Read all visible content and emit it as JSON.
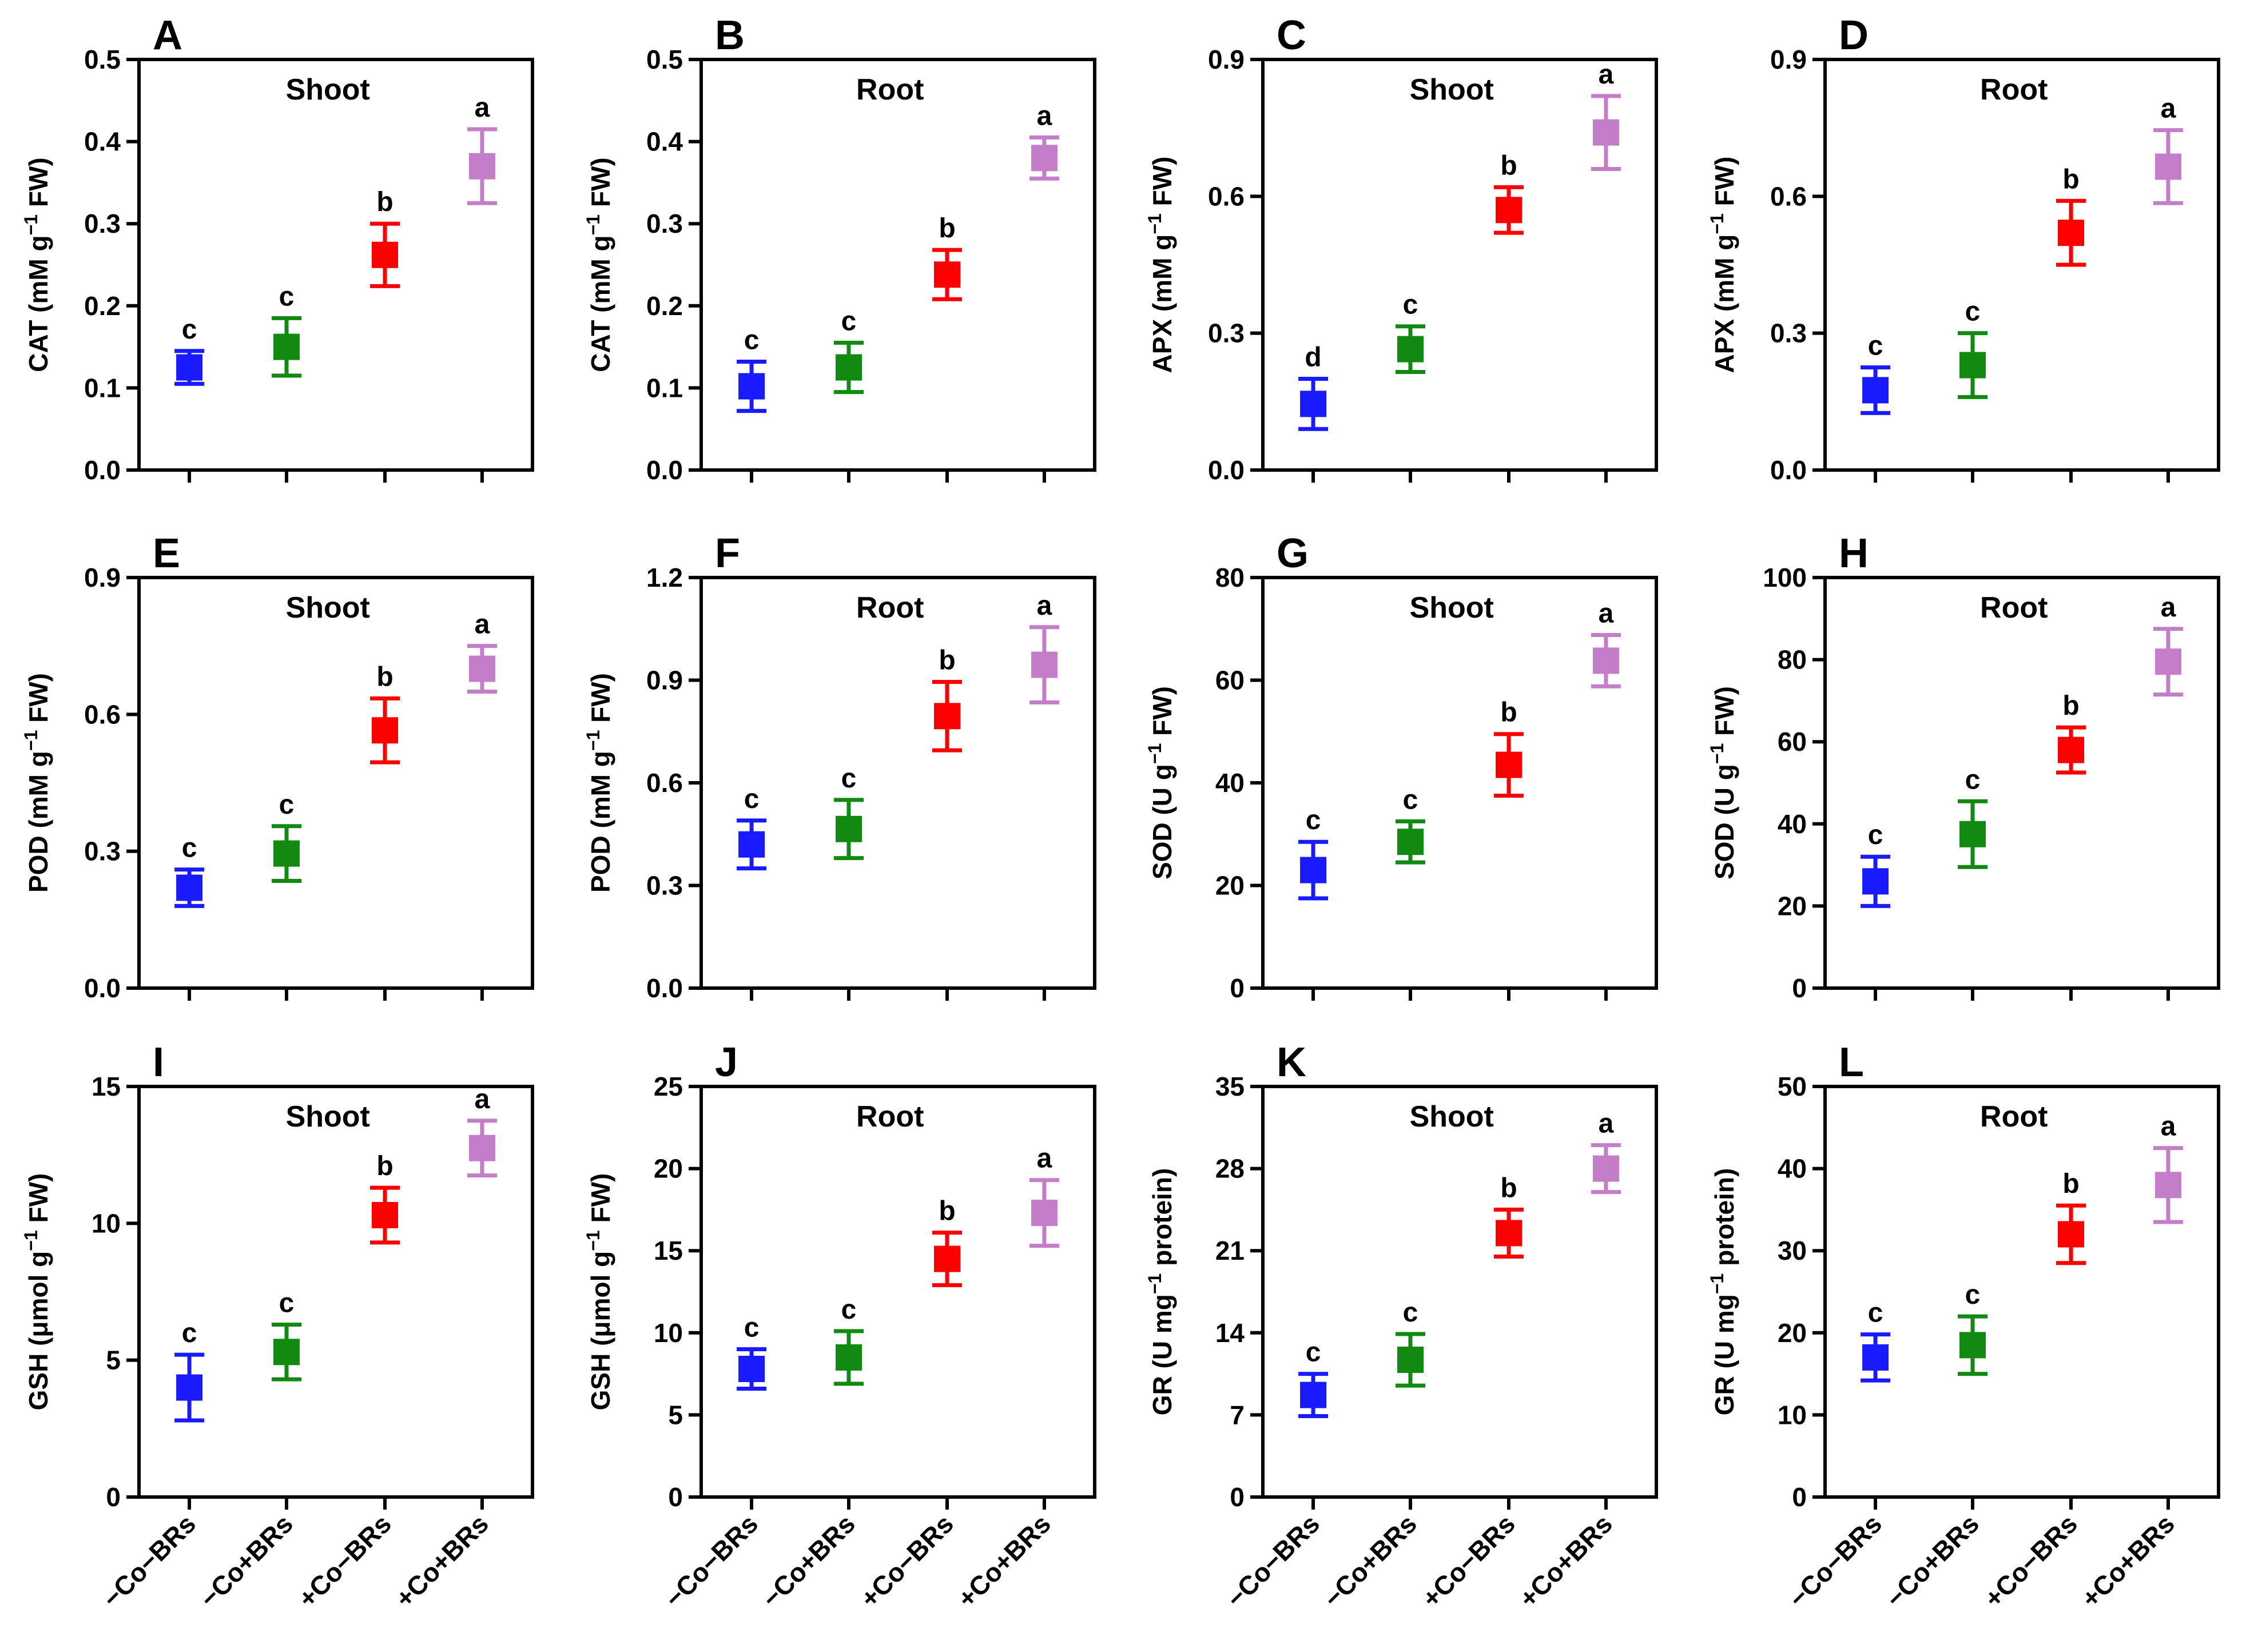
{
  "figure": {
    "categories": [
      "−Co−BRs",
      "−Co+BRs",
      "+Co−BRs",
      "+Co+BRs"
    ],
    "series_colors": [
      "#1a1aff",
      "#128a12",
      "#ff0000",
      "#c47ec9"
    ]
  },
  "chart_data": [
    {
      "type": "scatter",
      "panel": "A",
      "title": "Shoot",
      "ylabel_main": "CAT (mM g",
      "ylabel_sup": "−1",
      "ylabel_tail": " FW)",
      "ylim": [
        0,
        0.5
      ],
      "yticks": [
        0.0,
        0.1,
        0.2,
        0.3,
        0.4,
        0.5
      ],
      "tick_labels": [
        "0.0",
        "0.1",
        "0.2",
        "0.3",
        "0.4",
        "0.5"
      ],
      "values": [
        0.125,
        0.15,
        0.262,
        0.37
      ],
      "errors": [
        0.02,
        0.035,
        0.038,
        0.045
      ],
      "letters": [
        "c",
        "c",
        "b",
        "a"
      ],
      "show_xlabels": false
    },
    {
      "type": "scatter",
      "panel": "B",
      "title": "Root",
      "ylabel_main": "CAT (mM g",
      "ylabel_sup": "−1",
      "ylabel_tail": " FW)",
      "ylim": [
        0,
        0.5
      ],
      "yticks": [
        0.0,
        0.1,
        0.2,
        0.3,
        0.4,
        0.5
      ],
      "tick_labels": [
        "0.0",
        "0.1",
        "0.2",
        "0.3",
        "0.4",
        "0.5"
      ],
      "values": [
        0.102,
        0.125,
        0.238,
        0.38
      ],
      "errors": [
        0.03,
        0.03,
        0.03,
        0.025
      ],
      "letters": [
        "c",
        "c",
        "b",
        "a"
      ],
      "show_xlabels": false
    },
    {
      "type": "scatter",
      "panel": "C",
      "title": "Shoot",
      "ylabel_main": "APX (mM g",
      "ylabel_sup": "−1",
      "ylabel_tail": " FW)",
      "ylim": [
        0,
        0.9
      ],
      "yticks": [
        0.0,
        0.3,
        0.6,
        0.9
      ],
      "tick_labels": [
        "0.0",
        "0.3",
        "0.6",
        "0.9"
      ],
      "values": [
        0.145,
        0.265,
        0.57,
        0.74
      ],
      "errors": [
        0.055,
        0.05,
        0.05,
        0.08
      ],
      "letters": [
        "d",
        "c",
        "b",
        "a"
      ],
      "show_xlabels": false
    },
    {
      "type": "scatter",
      "panel": "D",
      "title": "Root",
      "ylabel_main": "APX (mM g",
      "ylabel_sup": "−1",
      "ylabel_tail": " FW)",
      "ylim": [
        0,
        0.9
      ],
      "yticks": [
        0.0,
        0.3,
        0.6,
        0.9
      ],
      "tick_labels": [
        "0.0",
        "0.3",
        "0.6",
        "0.9"
      ],
      "values": [
        0.175,
        0.23,
        0.52,
        0.665
      ],
      "errors": [
        0.05,
        0.07,
        0.07,
        0.08
      ],
      "letters": [
        "c",
        "c",
        "b",
        "a"
      ],
      "show_xlabels": false
    },
    {
      "type": "scatter",
      "panel": "E",
      "title": "Shoot",
      "ylabel_main": "POD (mM g",
      "ylabel_sup": "−1",
      "ylabel_tail": " FW)",
      "ylim": [
        0,
        0.9
      ],
      "yticks": [
        0.0,
        0.3,
        0.6,
        0.9
      ],
      "tick_labels": [
        "0.0",
        "0.3",
        "0.6",
        "0.9"
      ],
      "values": [
        0.22,
        0.295,
        0.565,
        0.7
      ],
      "errors": [
        0.04,
        0.06,
        0.07,
        0.05
      ],
      "letters": [
        "c",
        "c",
        "b",
        "a"
      ],
      "show_xlabels": false
    },
    {
      "type": "scatter",
      "panel": "F",
      "title": "Root",
      "ylabel_main": "POD (mM g",
      "ylabel_sup": "−1",
      "ylabel_tail": " FW)",
      "ylim": [
        0,
        1.2
      ],
      "yticks": [
        0.0,
        0.3,
        0.6,
        0.9,
        1.2
      ],
      "tick_labels": [
        "0.0",
        "0.3",
        "0.6",
        "0.9",
        "1.2"
      ],
      "values": [
        0.42,
        0.465,
        0.795,
        0.945
      ],
      "errors": [
        0.07,
        0.085,
        0.1,
        0.11
      ],
      "letters": [
        "c",
        "c",
        "b",
        "a"
      ],
      "show_xlabels": false
    },
    {
      "type": "scatter",
      "panel": "G",
      "title": "Shoot",
      "ylabel_main": "SOD (U g",
      "ylabel_sup": "−1",
      "ylabel_tail": " FW)",
      "ylim": [
        0,
        80
      ],
      "yticks": [
        0,
        20,
        40,
        60,
        80
      ],
      "tick_labels": [
        "0",
        "20",
        "40",
        "60",
        "80"
      ],
      "values": [
        23,
        28.5,
        43.5,
        63.8
      ],
      "errors": [
        5.5,
        4,
        6,
        5
      ],
      "letters": [
        "c",
        "c",
        "b",
        "a"
      ],
      "show_xlabels": false
    },
    {
      "type": "scatter",
      "panel": "H",
      "title": "Root",
      "ylabel_main": "SOD (U g",
      "ylabel_sup": "−1",
      "ylabel_tail": " FW)",
      "ylim": [
        0,
        100
      ],
      "yticks": [
        0,
        20,
        40,
        60,
        80,
        100
      ],
      "tick_labels": [
        "0",
        "20",
        "40",
        "60",
        "80",
        "100"
      ],
      "values": [
        26,
        37.5,
        58,
        79.5
      ],
      "errors": [
        6,
        8,
        5.5,
        8
      ],
      "letters": [
        "c",
        "c",
        "b",
        "a"
      ],
      "show_xlabels": false
    },
    {
      "type": "scatter",
      "panel": "I",
      "title": "Shoot",
      "ylabel_main": "GSH (μmol g",
      "ylabel_sup": "−1",
      "ylabel_tail": " FW)",
      "ylim": [
        0,
        15
      ],
      "yticks": [
        0,
        5,
        10,
        15
      ],
      "tick_labels": [
        "0",
        "5",
        "10",
        "15"
      ],
      "values": [
        4,
        5.3,
        10.3,
        12.75
      ],
      "errors": [
        1.2,
        1.0,
        1.0,
        1.0
      ],
      "letters": [
        "c",
        "c",
        "b",
        "a"
      ],
      "show_xlabels": true
    },
    {
      "type": "scatter",
      "panel": "J",
      "title": "Root",
      "ylabel_main": "GSH (μmol g",
      "ylabel_sup": "−1",
      "ylabel_tail": " FW)",
      "ylim": [
        0,
        25
      ],
      "yticks": [
        0,
        5,
        10,
        15,
        20,
        25
      ],
      "tick_labels": [
        "0",
        "5",
        "10",
        "15",
        "20",
        "25"
      ],
      "values": [
        7.8,
        8.5,
        14.5,
        17.3
      ],
      "errors": [
        1.2,
        1.6,
        1.6,
        2.0
      ],
      "letters": [
        "c",
        "c",
        "b",
        "a"
      ],
      "show_xlabels": true
    },
    {
      "type": "scatter",
      "panel": "K",
      "title": "Shoot",
      "ylabel_main": "GR (U mg",
      "ylabel_sup": "−1",
      "ylabel_tail": " protein)",
      "ylim": [
        0,
        35
      ],
      "yticks": [
        0,
        7,
        14,
        21,
        28,
        35
      ],
      "tick_labels": [
        "0",
        "7",
        "14",
        "21",
        "28",
        "35"
      ],
      "values": [
        8.7,
        11.7,
        22.5,
        28
      ],
      "errors": [
        1.8,
        2.2,
        2.0,
        2.0
      ],
      "letters": [
        "c",
        "c",
        "b",
        "a"
      ],
      "show_xlabels": true
    },
    {
      "type": "scatter",
      "panel": "L",
      "title": "Root",
      "ylabel_main": "GR (U mg",
      "ylabel_sup": "−1",
      "ylabel_tail": " protein)",
      "ylim": [
        0,
        50
      ],
      "yticks": [
        0,
        10,
        20,
        30,
        40,
        50
      ],
      "tick_labels": [
        "0",
        "10",
        "20",
        "30",
        "40",
        "50"
      ],
      "values": [
        17,
        18.5,
        32,
        38
      ],
      "errors": [
        2.8,
        3.5,
        3.5,
        4.5
      ],
      "letters": [
        "c",
        "c",
        "b",
        "a"
      ],
      "show_xlabels": true
    }
  ]
}
